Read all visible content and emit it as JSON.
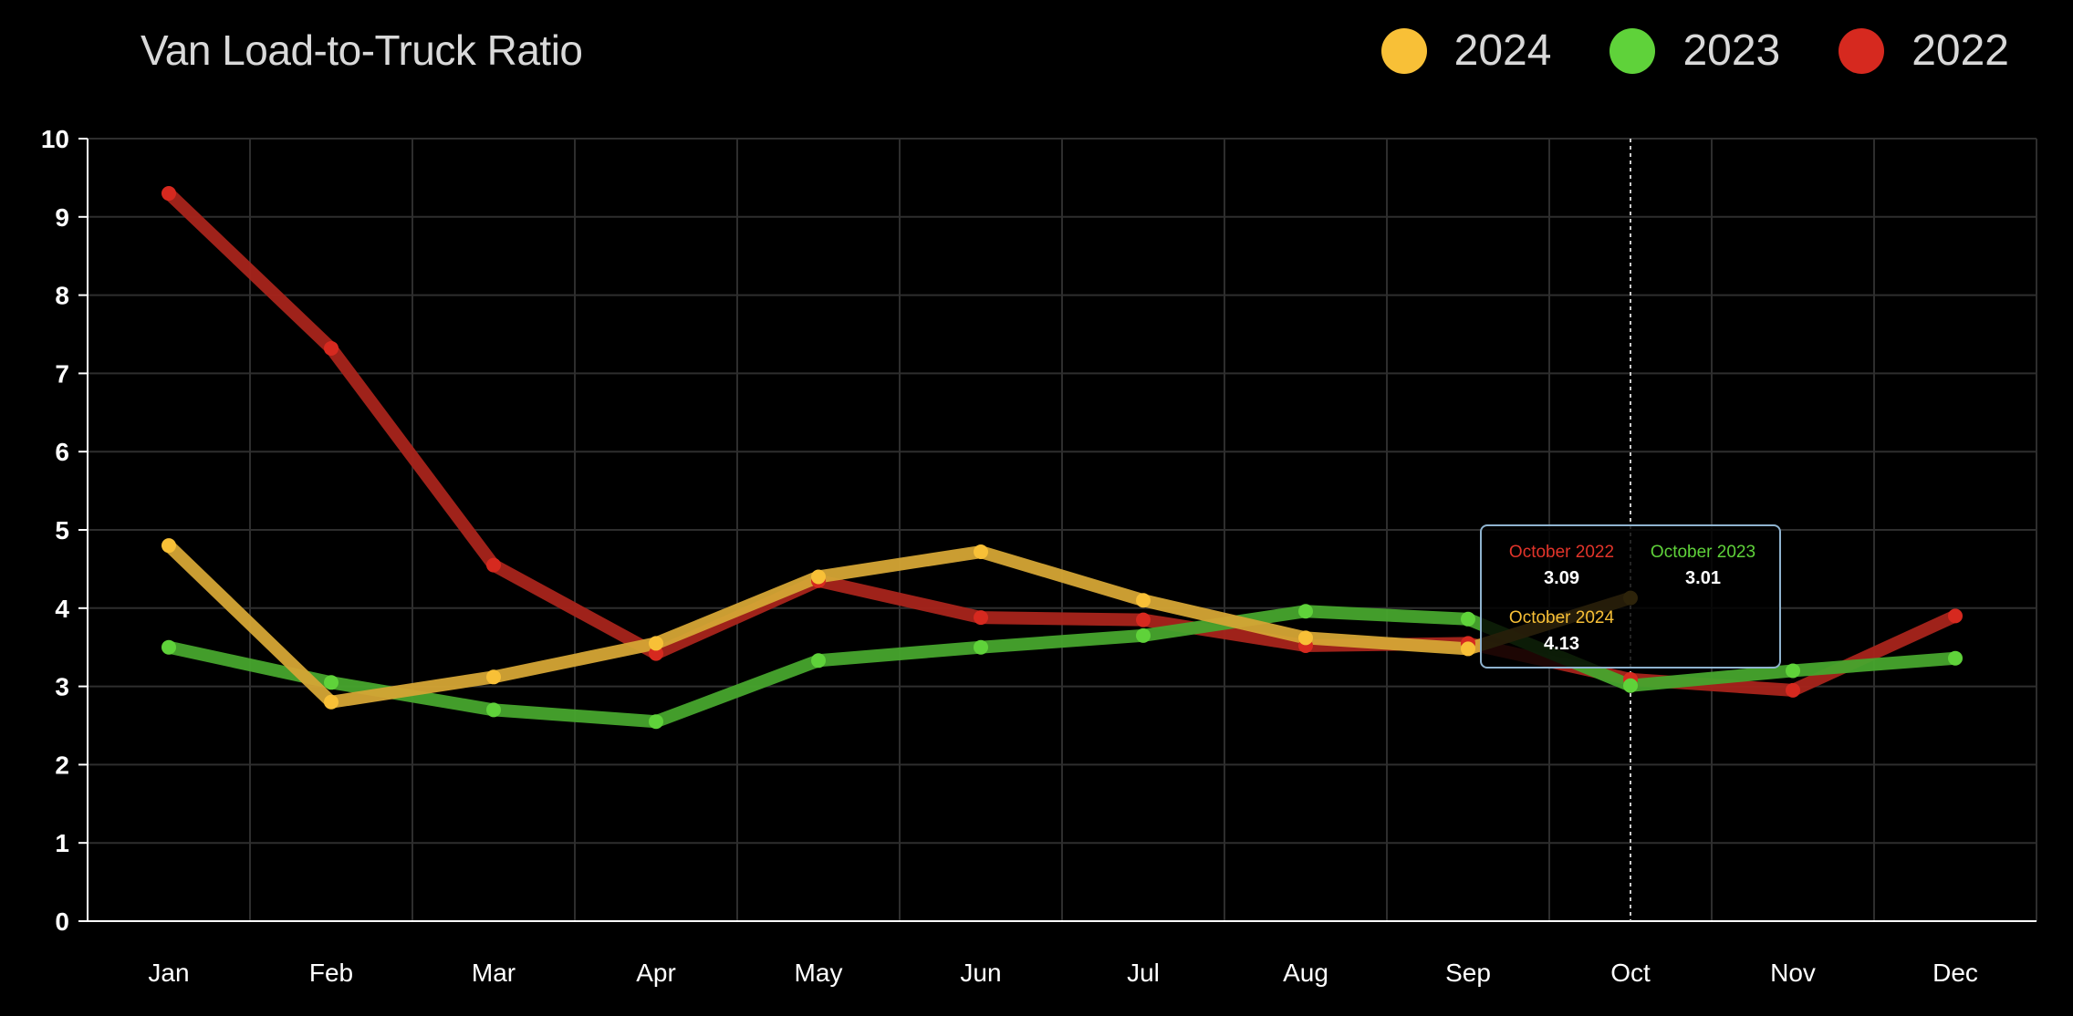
{
  "chart_data": {
    "type": "line",
    "title": "Van Load-to-Truck Ratio",
    "categories": [
      "Jan",
      "Feb",
      "Mar",
      "Apr",
      "May",
      "Jun",
      "Jul",
      "Aug",
      "Sep",
      "Oct",
      "Nov",
      "Dec"
    ],
    "ylim": [
      0,
      10
    ],
    "yticks": [
      "0",
      "1",
      "2",
      "3",
      "4",
      "5",
      "6",
      "7",
      "8",
      "9",
      "10"
    ],
    "grid": true,
    "legend_position": "top-right",
    "series": [
      {
        "name": "2024",
        "color": "#f8c037",
        "line_color": "#d5a535",
        "values": [
          4.8,
          2.8,
          3.12,
          3.55,
          4.4,
          4.72,
          4.1,
          3.62,
          3.48,
          4.13,
          null,
          null
        ]
      },
      {
        "name": "2023",
        "color": "#5fd23a",
        "line_color": "#47a52d",
        "values": [
          3.5,
          3.05,
          2.7,
          2.55,
          3.33,
          3.5,
          3.65,
          3.96,
          3.86,
          3.01,
          3.2,
          3.36
        ]
      },
      {
        "name": "2022",
        "color": "#d6291f",
        "line_color": "#a8241b",
        "values": [
          9.3,
          7.32,
          4.55,
          3.42,
          4.35,
          3.88,
          3.85,
          3.52,
          3.55,
          3.09,
          2.95,
          3.9
        ]
      }
    ],
    "hover_category": "Oct",
    "tooltip": [
      {
        "label": "October 2022",
        "value": "3.09",
        "color": "#e2342a"
      },
      {
        "label": "October 2023",
        "value": "3.01",
        "color": "#5fd23a"
      },
      {
        "label": "October 2024",
        "value": "4.13",
        "color": "#f8c037"
      }
    ]
  }
}
